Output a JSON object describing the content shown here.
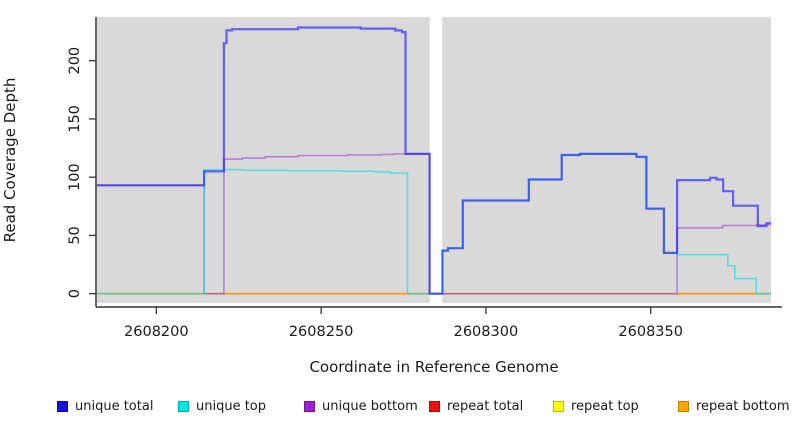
{
  "axes": {
    "xlabel": "Coordinate in Reference Genome",
    "ylabel": "Read Coverage Depth",
    "x_ticks": [
      {
        "value": 2608200,
        "label": "2608200"
      },
      {
        "value": 2608250,
        "label": "2608250"
      },
      {
        "value": 2608300,
        "label": "2608300"
      },
      {
        "value": 2608350,
        "label": "2608350"
      }
    ],
    "y_ticks": [
      {
        "value": 0,
        "label": "0"
      },
      {
        "value": 50,
        "label": "50"
      },
      {
        "value": 100,
        "label": "100"
      },
      {
        "value": 150,
        "label": "150"
      },
      {
        "value": 200,
        "label": "200"
      }
    ],
    "axis_color": "#333333",
    "text_color": "#1a1a1a"
  },
  "chart_data": {
    "type": "line",
    "subtype": "step-coverage",
    "title": "",
    "xlabel": "Coordinate in Reference Genome",
    "ylabel": "Read Coverage Depth",
    "xlim": [
      2608182,
      2608386.5
    ],
    "ylim": [
      -8,
      237.5
    ],
    "grid": false,
    "legend_position": "bottom",
    "panel_bg": "#d9d9d9",
    "gap_region": {
      "x0": 2608282.95,
      "x1": 2608286.75,
      "bg": "#ffffff"
    },
    "series": [
      {
        "name": "repeat total",
        "color": "#e02020",
        "opacity": 0.75,
        "width": 1.5,
        "points": [
          [
            2608182,
            0
          ],
          [
            2608386.5,
            0
          ]
        ]
      },
      {
        "name": "repeat top",
        "color": "#f5f500",
        "opacity": 0.9,
        "width": 1.5,
        "points": [
          [
            2608182,
            0
          ],
          [
            2608386.5,
            0
          ]
        ]
      },
      {
        "name": "repeat bottom",
        "color": "#ff9000",
        "opacity": 0.95,
        "width": 1.7,
        "points": [
          [
            2608182,
            0
          ],
          [
            2608386.5,
            0
          ]
        ]
      },
      {
        "name": "unique bottom",
        "color": "#a040d8",
        "opacity": 0.62,
        "width": 1.5,
        "points": [
          [
            2608182,
            93
          ],
          [
            2608214.5,
            93
          ],
          [
            2608214.5,
            0
          ],
          [
            2608220.5,
            0
          ],
          [
            2608220.5,
            115.5
          ],
          [
            2608226,
            115.5
          ],
          [
            2608226,
            116.5
          ],
          [
            2608233,
            116.5
          ],
          [
            2608233,
            117.5
          ],
          [
            2608243,
            117.5
          ],
          [
            2608243,
            118.5
          ],
          [
            2608258,
            118.5
          ],
          [
            2608258,
            119
          ],
          [
            2608268,
            119
          ],
          [
            2608268,
            119.5
          ],
          [
            2608272,
            119.5
          ],
          [
            2608272,
            120
          ],
          [
            2608282.9,
            120
          ],
          [
            2608282.9,
            0
          ],
          [
            2608358,
            0
          ],
          [
            2608358,
            56.5
          ],
          [
            2608371.8,
            56.5
          ],
          [
            2608371.8,
            58.5
          ],
          [
            2608382,
            58.5
          ],
          [
            2608382,
            59
          ],
          [
            2608386.5,
            59
          ]
        ]
      },
      {
        "name": "unique top",
        "color": "#00e0e0",
        "opacity": 0.62,
        "width": 1.5,
        "points": [
          [
            2608182,
            0
          ],
          [
            2608214.5,
            0
          ],
          [
            2608214.5,
            106.5
          ],
          [
            2608226,
            106.5
          ],
          [
            2608226,
            106
          ],
          [
            2608240,
            106
          ],
          [
            2608240,
            105.5
          ],
          [
            2608256,
            105.5
          ],
          [
            2608256,
            105
          ],
          [
            2608266,
            105
          ],
          [
            2608266,
            104.5
          ],
          [
            2608271,
            104.5
          ],
          [
            2608271,
            103.5
          ],
          [
            2608276.2,
            103.5
          ],
          [
            2608276.2,
            0
          ],
          [
            2608286.8,
            0
          ],
          [
            2608286.8,
            37
          ],
          [
            2608288.5,
            37
          ],
          [
            2608288.5,
            39
          ],
          [
            2608293,
            39
          ],
          [
            2608293,
            80
          ],
          [
            2608313,
            80
          ],
          [
            2608313,
            98
          ],
          [
            2608323,
            98
          ],
          [
            2608323,
            119
          ],
          [
            2608328.5,
            119
          ],
          [
            2608328.5,
            120
          ],
          [
            2608345.7,
            120
          ],
          [
            2608345.7,
            117.5
          ],
          [
            2608348.7,
            117.5
          ],
          [
            2608348.7,
            73
          ],
          [
            2608354,
            73
          ],
          [
            2608354,
            35
          ],
          [
            2608358,
            35
          ],
          [
            2608358,
            33.5
          ],
          [
            2608373.4,
            33.5
          ],
          [
            2608373.4,
            24
          ],
          [
            2608375.5,
            24
          ],
          [
            2608375.5,
            13
          ],
          [
            2608382,
            13
          ],
          [
            2608382,
            0
          ],
          [
            2608386.5,
            0
          ]
        ]
      },
      {
        "name": "unique total",
        "color": "#1515ff",
        "opacity": 0.62,
        "width": 2.2,
        "points": [
          [
            2608182,
            93
          ],
          [
            2608214.5,
            93
          ],
          [
            2608214.5,
            105
          ],
          [
            2608220.5,
            105
          ],
          [
            2608220.5,
            215
          ],
          [
            2608221.3,
            215
          ],
          [
            2608221.3,
            226
          ],
          [
            2608223,
            226
          ],
          [
            2608223,
            227
          ],
          [
            2608243,
            227
          ],
          [
            2608243,
            228.5
          ],
          [
            2608262,
            228.5
          ],
          [
            2608262,
            227.5
          ],
          [
            2608272.5,
            227.5
          ],
          [
            2608272.5,
            226
          ],
          [
            2608274.5,
            226
          ],
          [
            2608274.5,
            224.5
          ],
          [
            2608275.6,
            224.5
          ],
          [
            2608275.6,
            120
          ],
          [
            2608282.9,
            120
          ],
          [
            2608282.9,
            0
          ],
          [
            2608286.8,
            0
          ],
          [
            2608286.8,
            37
          ],
          [
            2608288.5,
            37
          ],
          [
            2608288.5,
            39
          ],
          [
            2608293,
            39
          ],
          [
            2608293,
            80
          ],
          [
            2608313,
            80
          ],
          [
            2608313,
            98
          ],
          [
            2608323,
            98
          ],
          [
            2608323,
            119
          ],
          [
            2608328.5,
            119
          ],
          [
            2608328.5,
            120
          ],
          [
            2608345.7,
            120
          ],
          [
            2608345.7,
            117.5
          ],
          [
            2608348.7,
            117.5
          ],
          [
            2608348.7,
            73
          ],
          [
            2608354,
            73
          ],
          [
            2608354,
            35
          ],
          [
            2608358,
            35
          ],
          [
            2608358,
            97.5
          ],
          [
            2608368,
            97.5
          ],
          [
            2608368,
            99.5
          ],
          [
            2608370,
            99.5
          ],
          [
            2608370,
            98
          ],
          [
            2608372,
            98
          ],
          [
            2608372,
            88
          ],
          [
            2608375,
            88
          ],
          [
            2608375,
            75.5
          ],
          [
            2608382.5,
            75.5
          ],
          [
            2608382.5,
            58
          ],
          [
            2608385.1,
            58
          ],
          [
            2608385.1,
            60.5
          ],
          [
            2608386.5,
            60.5
          ]
        ]
      }
    ]
  },
  "legend": {
    "items": [
      {
        "label": "unique total",
        "fill": "#1212dd",
        "border": "#0b0baa"
      },
      {
        "label": "unique top",
        "fill": "#00e6e6",
        "border": "#00a8a8"
      },
      {
        "label": "unique bottom",
        "fill": "#9d1fd1",
        "border": "#731797"
      },
      {
        "label": "repeat total",
        "fill": "#ee1111",
        "border": "#aa0c0c"
      },
      {
        "label": "repeat top",
        "fill": "#ffff00",
        "border": "#bdbd00"
      },
      {
        "label": "repeat bottom",
        "fill": "#ffa500",
        "border": "#c27c00"
      }
    ]
  }
}
